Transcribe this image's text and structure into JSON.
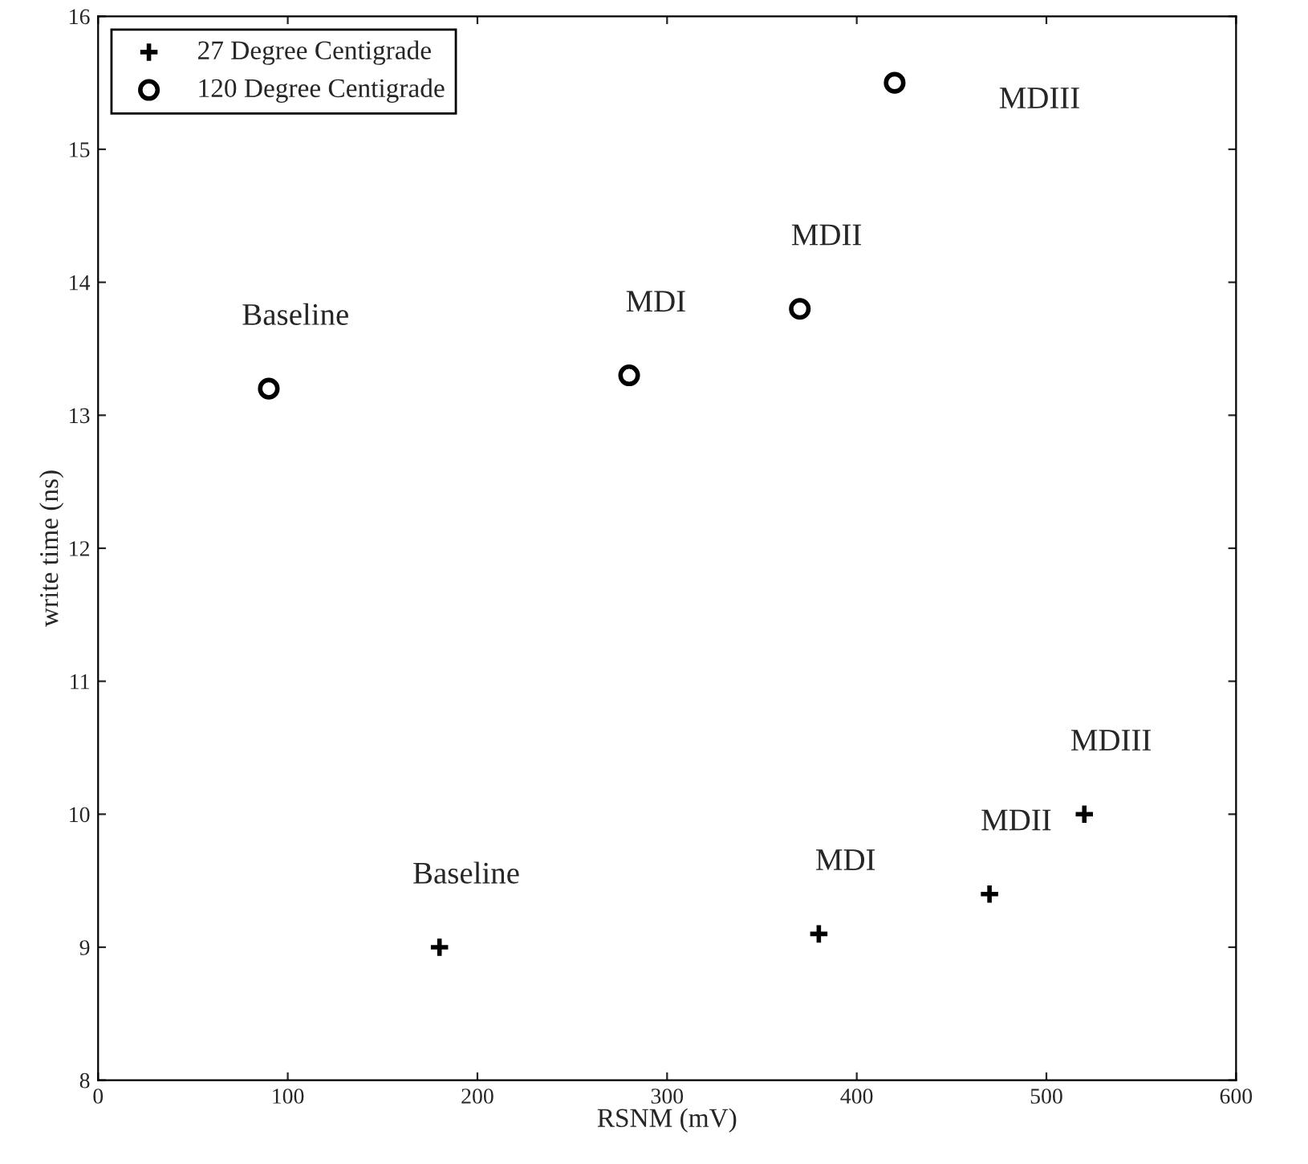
{
  "chart_data": {
    "type": "scatter",
    "xlabel": "RSNM (mV)",
    "ylabel": "write time (ns)",
    "series": [
      {
        "name": "27 Degree Centigrade",
        "color": "#000000",
        "marker": "cross",
        "x": [
          180,
          380,
          470,
          520
        ],
        "values": [
          9.0,
          9.1,
          9.4,
          10.0
        ]
      },
      {
        "name": "120 Degree Centigrade",
        "color": "#000000",
        "marker": "circle",
        "x": [
          90,
          280,
          370,
          420
        ],
        "values": [
          13.2,
          13.3,
          13.8,
          15.5
        ]
      }
    ],
    "annotations": [
      "Baseline",
      "MDI",
      "MDII",
      "MDIII",
      "Baseline",
      "MDI",
      "MDII",
      "MDIII"
    ],
    "xlim": [
      0,
      600
    ],
    "xticks": [
      0,
      100,
      200,
      300,
      400,
      500,
      600
    ],
    "ylim": [
      8,
      16
    ],
    "yticks": [
      8,
      9,
      10,
      11,
      12,
      13,
      14,
      15,
      16
    ],
    "grid": false,
    "legend": "top left"
  }
}
